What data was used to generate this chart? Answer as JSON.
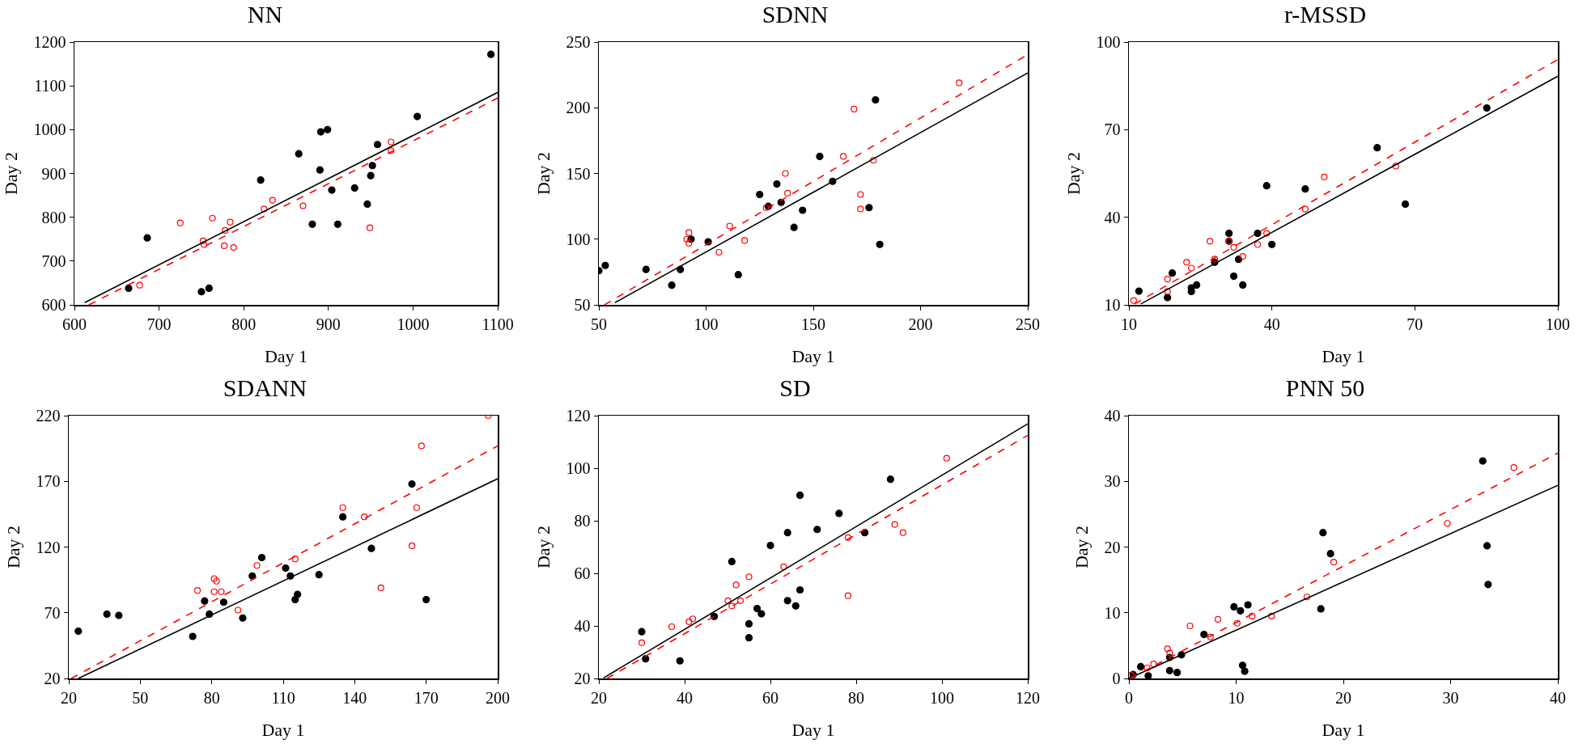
{
  "chart_data": [
    {
      "type": "scatter",
      "title": "NN",
      "xlabel": "Day 1",
      "ylabel": "Day 2",
      "xlim": [
        600,
        1100
      ],
      "ylim": [
        600,
        1200
      ],
      "xticks": [
        600,
        700,
        800,
        900,
        1000,
        1100
      ],
      "yticks": [
        600,
        700,
        800,
        900,
        1000,
        1100,
        1200
      ],
      "series": [
        {
          "type": "scatter",
          "color": "#000000",
          "marker": "circle",
          "x": [
            664,
            686,
            750,
            759,
            820,
            865,
            891,
            899,
            890,
            904,
            881,
            911,
            931,
            946,
            950,
            952,
            958,
            1005,
            1092
          ],
          "values": [
            638,
            753,
            630,
            638,
            885,
            945,
            995,
            1000,
            908,
            862,
            784,
            784,
            867,
            830,
            895,
            918,
            966,
            1030,
            1172
          ]
        },
        {
          "type": "scatter",
          "color": "#ff0000",
          "marker": "circle-open",
          "x": [
            677,
            725,
            752,
            753,
            763,
            778,
            784,
            777,
            788,
            824,
            834,
            870,
            949,
            974,
            974
          ],
          "values": [
            645,
            787,
            746,
            738,
            798,
            770,
            789,
            735,
            731,
            819,
            839,
            826,
            776,
            972,
            952
          ]
        },
        {
          "type": "line",
          "color": "#000000",
          "line_style": "solid",
          "x": [
            612,
            1100
          ],
          "values": [
            605,
            1085
          ]
        },
        {
          "type": "line",
          "color": "#ff0000",
          "line_style": "dashed",
          "x": [
            617,
            1100
          ],
          "values": [
            600,
            1072
          ]
        }
      ]
    },
    {
      "type": "scatter",
      "title": "SDNN",
      "xlabel": "Day 1",
      "ylabel": "Day 2",
      "xlim": [
        50,
        250
      ],
      "ylim": [
        50,
        250
      ],
      "xticks": [
        50,
        100,
        150,
        200,
        250
      ],
      "yticks": [
        50,
        100,
        150,
        200,
        250
      ],
      "series": [
        {
          "type": "scatter",
          "color": "#000000",
          "marker": "circle",
          "x": [
            50,
            53,
            72,
            84,
            88,
            93,
            101,
            115,
            125,
            129,
            133,
            135,
            141,
            145,
            153,
            159,
            176,
            179,
            181
          ],
          "values": [
            76,
            80,
            77,
            65,
            77,
            100,
            98,
            73,
            134,
            125,
            142,
            128,
            109,
            122,
            163,
            144,
            124,
            206,
            96
          ]
        },
        {
          "type": "scatter",
          "color": "#ff0000",
          "marker": "circle-open",
          "x": [
            91,
            92,
            92,
            106,
            111,
            118,
            128,
            137,
            138,
            164,
            169,
            172,
            172,
            178,
            218
          ],
          "values": [
            100,
            105,
            97,
            90,
            110,
            99,
            124,
            150,
            135,
            163,
            199,
            134,
            123,
            160,
            219
          ]
        },
        {
          "type": "line",
          "color": "#000000",
          "line_style": "solid",
          "x": [
            57.5,
            250
          ],
          "values": [
            51.7,
            226.5
          ]
        },
        {
          "type": "line",
          "color": "#ff0000",
          "line_style": "dashed",
          "x": [
            52.6,
            250
          ],
          "values": [
            50,
            240.5
          ]
        }
      ]
    },
    {
      "type": "scatter",
      "title": "r-MSSD",
      "xlabel": "Day 1",
      "ylabel": "Day 2",
      "xlim": [
        10,
        100
      ],
      "ylim": [
        10,
        100
      ],
      "xticks": [
        10,
        40,
        70,
        100
      ],
      "yticks": [
        10,
        40,
        70,
        100
      ],
      "series": [
        {
          "type": "scatter",
          "color": "#000000",
          "marker": "circle",
          "x": [
            12.1,
            18.1,
            19.1,
            23.1,
            23.1,
            24.2,
            28,
            31,
            31,
            32,
            33,
            33.9,
            37,
            38.9,
            40,
            47,
            62.1,
            68,
            85.1
          ],
          "values": [
            14.7,
            12.5,
            20.9,
            15.8,
            14.6,
            16.8,
            24.6,
            34.5,
            31.8,
            19.8,
            25.6,
            16.8,
            34.5,
            50.8,
            30.7,
            49.7,
            63.8,
            44.5,
            77.4
          ]
        },
        {
          "type": "scatter",
          "color": "#ff0000",
          "marker": "circle-open",
          "x": [
            11,
            18.1,
            18.1,
            22.1,
            23.1,
            27,
            28,
            31,
            32,
            33.9,
            37,
            38.9,
            47,
            51,
            66
          ],
          "values": [
            11.5,
            18.8,
            14.6,
            24.6,
            22.6,
            31.8,
            25.7,
            31.8,
            29.7,
            26.6,
            30.7,
            34.5,
            42.8,
            53.8,
            57.5
          ]
        },
        {
          "type": "line",
          "color": "#000000",
          "line_style": "solid",
          "x": [
            12.5,
            100
          ],
          "values": [
            10.3,
            88.3
          ]
        },
        {
          "type": "line",
          "color": "#ff0000",
          "line_style": "dashed",
          "x": [
            11.2,
            100
          ],
          "values": [
            10.3,
            94
          ]
        }
      ]
    },
    {
      "type": "scatter",
      "title": "SDANN",
      "xlabel": "Day 1",
      "ylabel": "Day 2",
      "xlim": [
        20,
        200
      ],
      "ylim": [
        20,
        220
      ],
      "xticks": [
        20,
        50,
        80,
        110,
        140,
        170,
        200
      ],
      "yticks": [
        20,
        70,
        120,
        170,
        220
      ],
      "series": [
        {
          "type": "scatter",
          "color": "#000000",
          "marker": "circle",
          "x": [
            24,
            36,
            41,
            72,
            77,
            79,
            85,
            93,
            97,
            101,
            111,
            113,
            115,
            116,
            125,
            135,
            147,
            164,
            170
          ],
          "values": [
            56,
            69,
            68,
            52,
            79,
            69,
            78,
            66,
            98,
            112,
            104,
            98,
            80,
            84,
            99,
            143,
            119,
            168,
            80
          ]
        },
        {
          "type": "scatter",
          "color": "#ff0000",
          "marker": "circle-open",
          "x": [
            74,
            81,
            82,
            81,
            84,
            91,
            99,
            115,
            135,
            144,
            151,
            164,
            166,
            168,
            196
          ],
          "values": [
            87,
            96,
            94,
            86,
            86,
            72,
            106,
            111,
            150,
            143,
            89,
            121,
            150,
            197,
            220
          ]
        },
        {
          "type": "line",
          "color": "#000000",
          "line_style": "solid",
          "x": [
            24,
            200
          ],
          "values": [
            20,
            172
          ]
        },
        {
          "type": "line",
          "color": "#ff0000",
          "line_style": "dashed",
          "x": [
            21,
            200
          ],
          "values": [
            20,
            197
          ]
        }
      ]
    },
    {
      "type": "scatter",
      "title": "SD",
      "xlabel": "Day 1",
      "ylabel": "Day 2",
      "xlim": [
        20,
        120
      ],
      "ylim": [
        20,
        120
      ],
      "xticks": [
        20,
        40,
        60,
        80,
        100,
        120
      ],
      "yticks": [
        20,
        40,
        60,
        80,
        100,
        120
      ],
      "series": [
        {
          "type": "scatter",
          "color": "#000000",
          "marker": "circle",
          "x": [
            30,
            30.9,
            38.9,
            46.9,
            51,
            55,
            55,
            56.9,
            57.9,
            60,
            64,
            64,
            65.9,
            66.9,
            66.9,
            70.9,
            76,
            82,
            88
          ],
          "values": [
            37.8,
            27.5,
            26.7,
            43.6,
            64.5,
            40.8,
            35.5,
            46.6,
            44.6,
            70.6,
            75.5,
            49.6,
            47.6,
            53.7,
            89.7,
            76.7,
            82.8,
            75.5,
            95.8
          ]
        },
        {
          "type": "scatter",
          "color": "#ff0000",
          "marker": "circle-open",
          "x": [
            30,
            37,
            41,
            41.9,
            50.1,
            51,
            52,
            53,
            55,
            63.1,
            78.1,
            78.1,
            89,
            90.9,
            101.1
          ],
          "values": [
            33.6,
            39.7,
            41.6,
            42.7,
            49.6,
            47.6,
            55.6,
            49.6,
            58.7,
            62.5,
            73.6,
            51.5,
            78.6,
            75.5,
            103.8
          ]
        },
        {
          "type": "line",
          "color": "#000000",
          "line_style": "solid",
          "x": [
            21.1,
            120
          ],
          "values": [
            20.2,
            116.9
          ]
        },
        {
          "type": "line",
          "color": "#ff0000",
          "line_style": "dashed",
          "x": [
            21.9,
            120
          ],
          "values": [
            20,
            112.5
          ]
        }
      ]
    },
    {
      "type": "scatter",
      "title": "PNN 50",
      "xlabel": "Day 1",
      "ylabel": "Day 2",
      "xlim": [
        0,
        40
      ],
      "ylim": [
        0,
        40
      ],
      "xticks": [
        0,
        10,
        20,
        30,
        40
      ],
      "yticks": [
        0,
        10,
        20,
        30,
        40
      ],
      "series": [
        {
          "type": "scatter",
          "color": "#000000",
          "marker": "circle",
          "x": [
            0.4,
            1.1,
            1.8,
            3.8,
            3.8,
            4.5,
            4.9,
            7,
            9.8,
            10.4,
            10.6,
            10.8,
            11.1,
            17.9,
            18.1,
            18.8,
            33,
            33.4,
            33.5
          ],
          "values": [
            0.6,
            1.8,
            0.4,
            1.2,
            3.2,
            0.9,
            3.6,
            6.7,
            10.9,
            10.3,
            2,
            1.1,
            11.2,
            10.6,
            22.2,
            19,
            33.1,
            20.2,
            14.3
          ]
        },
        {
          "type": "scatter",
          "color": "#ff0000",
          "marker": "circle-open",
          "x": [
            0.2,
            1.7,
            2.3,
            3.6,
            3.8,
            5.7,
            7.6,
            8.3,
            10.1,
            11.5,
            13.3,
            16.6,
            19.1,
            29.7,
            35.9
          ],
          "values": [
            0.5,
            1.6,
            2.2,
            4.5,
            3.9,
            8,
            6.3,
            9,
            8.4,
            9.5,
            9.5,
            12.4,
            17.7,
            23.6,
            32.1
          ]
        },
        {
          "type": "line",
          "color": "#000000",
          "line_style": "solid",
          "x": [
            0,
            40
          ],
          "values": [
            0,
            29.4
          ]
        },
        {
          "type": "line",
          "color": "#ff0000",
          "line_style": "dashed",
          "x": [
            0.1,
            40
          ],
          "values": [
            0,
            34.3
          ]
        }
      ]
    }
  ]
}
